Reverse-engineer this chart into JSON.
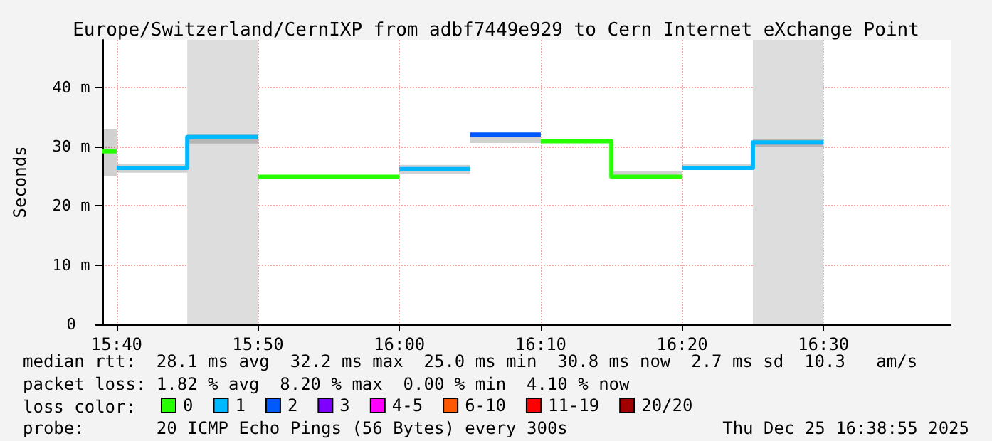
{
  "chart_data": {
    "type": "line",
    "title": "Europe/Switzerland/CernIXP from adbf7449e929 to Cern Internet eXchange Point",
    "ylabel": "Seconds",
    "legend_title": "loss color:",
    "annotations": [
      "median rtt:  28.1 ms avg  32.2 ms max  25.0 ms min  30.8 ms now  2.7 ms sd  10.3   am/s",
      "packet loss: 1.82 % avg  8.20 % max  0.00 % min  4.10 % now",
      "probe:       20 ICMP Echo Pings (56 Bytes) every 300s",
      "Thu Dec 25 16:38:55 2025"
    ],
    "xlim": [
      15.65,
      16.65
    ],
    "xticks": [
      {
        "value": 15.6667,
        "label": "15:40"
      },
      {
        "value": 15.8333,
        "label": "15:50"
      },
      {
        "value": 16.0,
        "label": "16:00"
      },
      {
        "value": 16.1667,
        "label": "16:10"
      },
      {
        "value": 16.3333,
        "label": "16:20"
      },
      {
        "value": 16.5,
        "label": "16:30"
      }
    ],
    "ylim": [
      0,
      48
    ],
    "yticks": [
      0,
      {
        "value": 10,
        "label": "10 m"
      },
      {
        "value": 20,
        "label": "20 m"
      },
      {
        "value": 30,
        "label": "30 m"
      },
      {
        "value": 40,
        "label": "40 m"
      }
    ],
    "grid": true,
    "legend": "bottom",
    "bands": [
      {
        "axis": "x",
        "from": 15.75,
        "to": 15.8333,
        "color": "#dddddd"
      },
      {
        "axis": "x",
        "from": 16.4167,
        "to": 16.5,
        "color": "#dddddd"
      }
    ],
    "series": [
      {
        "name": "0",
        "color": "#26ff00",
        "x": [
          15.65,
          15.6667
        ],
        "values": [
          29.2,
          29.2
        ],
        "lower": [
          25,
          25
        ],
        "upper": [
          33,
          33
        ]
      },
      {
        "color": "#26ff00",
        "x": [
          15.8333,
          16.0
        ],
        "values": [
          24.9,
          24.9
        ],
        "lower": [
          24.9,
          24.9
        ],
        "upper": [
          25.2,
          25.2
        ]
      },
      {
        "color": "#26ff00",
        "x": [
          16.1667,
          16.25,
          16.25,
          16.3333
        ],
        "values": [
          30.9,
          30.9,
          24.9,
          24.9
        ],
        "lower": [
          30.6,
          30.6,
          24.9,
          24.9
        ],
        "upper": [
          31.2,
          31.2,
          25.8,
          25.8
        ]
      },
      {
        "name": "1",
        "color": "#00b8ff",
        "x": [
          15.6667,
          15.75,
          15.75,
          15.8333
        ],
        "values": [
          26.4,
          26.4,
          31.6,
          31.6
        ],
        "lower": [
          25.6,
          25.6,
          30.5,
          30.5
        ],
        "upper": [
          27.1,
          27.1,
          32.0,
          32.0
        ]
      },
      {
        "color": "#00b8ff",
        "x": [
          16.0,
          16.0833
        ],
        "values": [
          26.2,
          26.2
        ],
        "lower": [
          25.4,
          25.4
        ],
        "upper": [
          26.9,
          26.9
        ]
      },
      {
        "color": "#00b8ff",
        "x": [
          16.3333,
          16.4167,
          16.4167,
          16.5
        ],
        "values": [
          26.4,
          26.4,
          30.7,
          30.7
        ],
        "lower": [
          26.2,
          26.2,
          29.9,
          29.9
        ],
        "upper": [
          27.0,
          27.0,
          31.3,
          31.3
        ]
      },
      {
        "name": "2",
        "color": "#0059ff",
        "x": [
          16.0833,
          16.1667
        ],
        "values": [
          32.0,
          32.0
        ],
        "lower": [
          30.6,
          30.6
        ],
        "upper": [
          32.3,
          32.3
        ]
      },
      {
        "name": "3",
        "color": "#7e00ff"
      },
      {
        "name": "4-5",
        "color": "#ff00ff"
      },
      {
        "name": "6-10",
        "color": "#ff5900"
      },
      {
        "name": "11-19",
        "color": "#ff0000"
      },
      {
        "name": "20/20",
        "color": "#a10000"
      }
    ]
  }
}
